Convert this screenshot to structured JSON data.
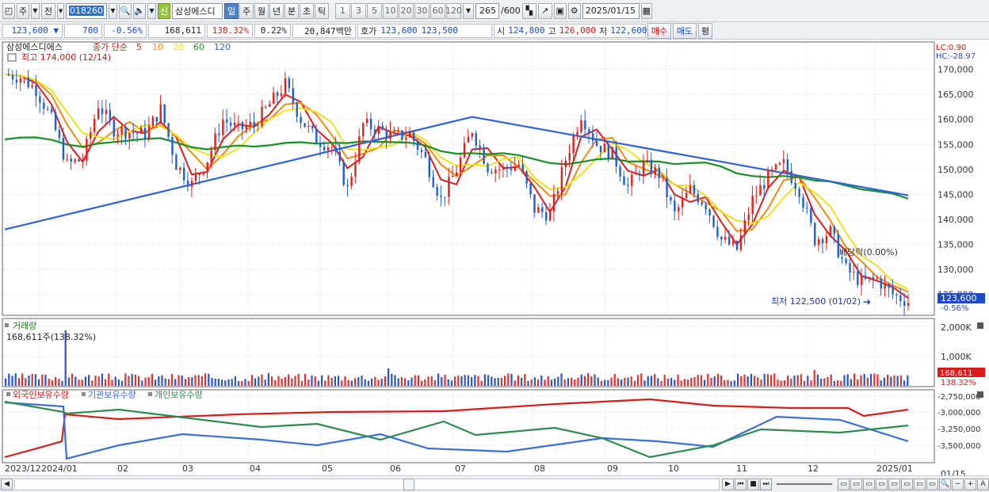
{
  "toolbar": {
    "period_prefix": "주",
    "prev_label": "전",
    "code": "018260",
    "stock_name": "삼성에스디",
    "period_tabs": [
      "일",
      "주",
      "월",
      "년",
      "분",
      "초",
      "틱"
    ],
    "active_tab": "일",
    "minute_units": [
      "1",
      "3",
      "5",
      "10",
      "20",
      "30",
      "60",
      "120"
    ],
    "bar_count": "265",
    "bar_total": "/600",
    "date": "2025/01/15",
    "shin_label": "신"
  },
  "infobar": {
    "price": "123,600",
    "arrow": "▼",
    "change": "700",
    "change_pct": "-0.56%",
    "volume": "168,611",
    "volume_ratio": "138.32%",
    "turnover": "0.22%",
    "amount": "20,847백만",
    "hoga_label": "호가",
    "ask": "123,600",
    "bid": "123,500",
    "open_label": "시",
    "open": "124,800",
    "high_label": "고",
    "high": "126,000",
    "low_label": "저",
    "low": "122,600",
    "buy_label": "매수",
    "sell_label": "매도",
    "extra_label": "평"
  },
  "price_panel": {
    "name": "삼성에스디에스",
    "ma_label": "종가 단순",
    "ma_periods": [
      "5",
      "10",
      "20",
      "60",
      "120"
    ],
    "ma_colors": [
      "#d92020",
      "#f08a10",
      "#f0e020",
      "#189028",
      "#2f62d8"
    ],
    "candle_up": "#e02020",
    "candle_down": "#1f5fd0",
    "high_note": "최고 174,000 (12/14)",
    "low_note": "최저 122,500 (01/02)",
    "ratio_note": "배당락(0.00%)",
    "lc": "LC:0.90",
    "hc": "HC:-28.97",
    "axis": [
      "170,000",
      "165,000",
      "160,000",
      "155,000",
      "150,000",
      "145,000",
      "140,000",
      "135,000",
      "130,000",
      "125,000"
    ],
    "cur_label": "123,600",
    "cur_pct": "-0.56%"
  },
  "volume_panel": {
    "title": "거래량",
    "value": "168,611주(138.32%)",
    "axis": [
      "2,000K",
      "1,000K"
    ],
    "cur_label": "168,611",
    "cur_pct": "138.32%"
  },
  "holder_panel": {
    "legend": [
      "외국인보유수량",
      "기관보유수량",
      "개인보유수량"
    ],
    "colors": [
      "#d81c1c",
      "#3a6fd8",
      "#2e8a50"
    ],
    "axis": [
      "-2,750,000",
      "-3,000,000",
      "-3,250,000",
      "-3,500,000"
    ]
  },
  "x_axis": [
    "2023/12",
    "2024/01",
    "02",
    "03",
    "04",
    "05",
    "06",
    "07",
    "08",
    "09",
    "10",
    "11",
    "12",
    "2025/01"
  ],
  "x_end": "01/15",
  "chart_data": {
    "type": "line",
    "series": [
      {
        "name": "종가",
        "values": [
          169000,
          168500,
          166000,
          160000,
          151000,
          152000,
          163000,
          158000,
          157500,
          157000,
          162000,
          151000,
          147000,
          152000,
          160000,
          158000,
          159000,
          163000,
          167000,
          160000,
          156000,
          154500,
          146000,
          159000,
          158000,
          156500,
          157000,
          152000,
          144000,
          150000,
          158000,
          150500,
          150000,
          151000,
          142000,
          141000,
          152000,
          161000,
          155000,
          153000,
          146500,
          151000,
          149000,
          141000,
          146000,
          143000,
          136000,
          134000,
          144000,
          148500,
          151000,
          146000,
          136000,
          137500,
          130000,
          127500,
          128000,
          125000,
          123600
        ]
      }
    ],
    "ylim": [
      121000,
      175000
    ],
    "annotations": [
      "최고 174,000 (12/14)",
      "최저 122,500 (01/02)",
      "배당락(0.00%)"
    ]
  }
}
